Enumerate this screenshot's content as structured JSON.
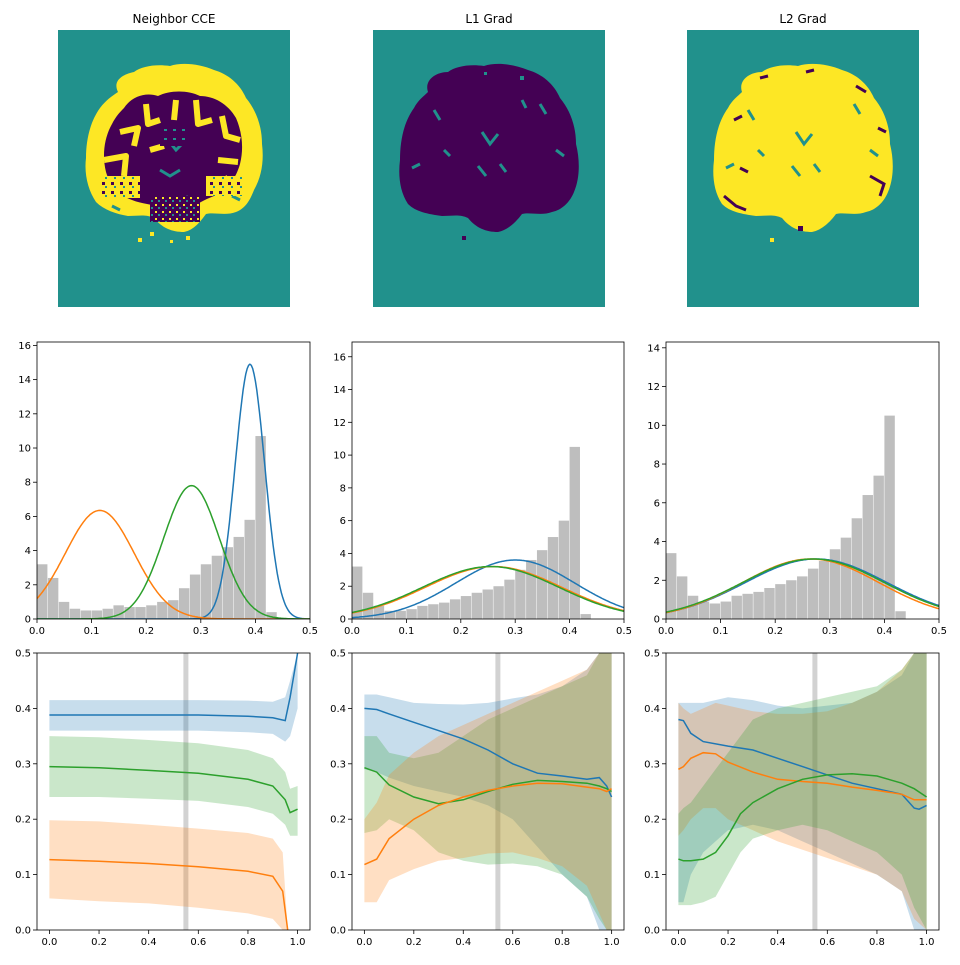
{
  "colors": {
    "blue": "#1f77b4",
    "orange": "#ff7f0e",
    "green": "#2ca02c",
    "gray": "#bebebe",
    "teal": "#21918c",
    "purple": "#440154",
    "yellow": "#fde725"
  },
  "panels": [
    {
      "title": "Neighbor CCE"
    },
    {
      "title": "L1 Grad"
    },
    {
      "title": "L2 Grad"
    }
  ],
  "chart_data": [
    {
      "type": "heatmap",
      "title": "Neighbor CCE",
      "description_values": "segmentation map with labels {0: background teal, 1: dark purple, 2: yellow}",
      "grid": false
    },
    {
      "type": "heatmap",
      "title": "L1 Grad",
      "grid": false
    },
    {
      "type": "heatmap",
      "title": "L2 Grad",
      "grid": false
    },
    {
      "type": "bar",
      "xlim": [
        0,
        0.5
      ],
      "ylim": [
        0,
        16.2
      ],
      "xticks": [
        "0.0",
        "0.1",
        "0.2",
        "0.3",
        "0.4",
        "0.5"
      ],
      "yticks": [
        "0",
        "2",
        "4",
        "6",
        "8",
        "10",
        "12",
        "14",
        "16"
      ],
      "hist": {
        "x": [
          0.0,
          0.02,
          0.04,
          0.06,
          0.08,
          0.1,
          0.12,
          0.14,
          0.16,
          0.18,
          0.2,
          0.22,
          0.24,
          0.26,
          0.28,
          0.3,
          0.32,
          0.34,
          0.36,
          0.38,
          0.4,
          0.42,
          0.44,
          0.46,
          0.48
        ],
        "values": [
          3.2,
          2.4,
          1.0,
          0.6,
          0.5,
          0.5,
          0.6,
          0.8,
          0.7,
          0.7,
          0.8,
          1.0,
          1.1,
          1.8,
          2.6,
          3.2,
          3.7,
          4.2,
          4.8,
          5.8,
          10.7,
          0.4,
          0.0,
          0.0,
          0.0
        ]
      },
      "series": [
        {
          "color": "blue",
          "mean": 0.39,
          "std": 0.027,
          "peak": 14.9
        },
        {
          "color": "orange",
          "mean": 0.115,
          "std": 0.063,
          "peak": 6.35
        },
        {
          "color": "green",
          "mean": 0.283,
          "std": 0.051,
          "peak": 7.8
        }
      ]
    },
    {
      "type": "bar",
      "xlim": [
        0,
        0.5
      ],
      "ylim": [
        0,
        16.9
      ],
      "xticks": [
        "0.0",
        "0.1",
        "0.2",
        "0.3",
        "0.4",
        "0.5"
      ],
      "yticks": [
        "0",
        "2",
        "4",
        "6",
        "8",
        "10",
        "12",
        "14",
        "16"
      ],
      "hist": {
        "x": [
          0.0,
          0.02,
          0.04,
          0.06,
          0.08,
          0.1,
          0.12,
          0.14,
          0.16,
          0.18,
          0.2,
          0.22,
          0.24,
          0.26,
          0.28,
          0.3,
          0.32,
          0.34,
          0.36,
          0.38,
          0.4,
          0.42,
          0.44,
          0.46,
          0.48
        ],
        "values": [
          3.2,
          1.6,
          0.8,
          0.5,
          0.5,
          0.6,
          0.8,
          0.9,
          1.0,
          1.2,
          1.4,
          1.6,
          1.8,
          2.0,
          2.4,
          3.0,
          3.6,
          4.2,
          5.0,
          6.0,
          10.5,
          0.3,
          0.0,
          0.0,
          0.0
        ]
      },
      "series": [
        {
          "color": "blue",
          "mean": 0.3,
          "std": 0.11,
          "peak": 3.6
        },
        {
          "color": "orange",
          "mean": 0.26,
          "std": 0.125,
          "peak": 3.2
        },
        {
          "color": "green",
          "mean": 0.255,
          "std": 0.125,
          "peak": 3.2
        }
      ]
    },
    {
      "type": "bar",
      "xlim": [
        0,
        0.5
      ],
      "ylim": [
        0,
        14.3
      ],
      "xticks": [
        "0.0",
        "0.1",
        "0.2",
        "0.3",
        "0.4",
        "0.5"
      ],
      "yticks": [
        "0",
        "2",
        "4",
        "6",
        "8",
        "10",
        "12",
        "14"
      ],
      "hist": {
        "x": [
          0.0,
          0.02,
          0.04,
          0.06,
          0.08,
          0.1,
          0.12,
          0.14,
          0.16,
          0.18,
          0.2,
          0.22,
          0.24,
          0.26,
          0.28,
          0.3,
          0.32,
          0.34,
          0.36,
          0.38,
          0.4,
          0.42,
          0.44,
          0.46,
          0.48
        ],
        "values": [
          3.4,
          2.2,
          1.2,
          0.9,
          0.8,
          0.9,
          1.2,
          1.3,
          1.4,
          1.6,
          1.8,
          2.0,
          2.2,
          2.6,
          3.0,
          3.6,
          4.2,
          5.2,
          6.4,
          7.4,
          10.5,
          0.4,
          0.0,
          0.0,
          0.0
        ]
      },
      "series": [
        {
          "color": "blue",
          "mean": 0.275,
          "std": 0.13,
          "peak": 3.1
        },
        {
          "color": "orange",
          "mean": 0.265,
          "std": 0.125,
          "peak": 3.1
        },
        {
          "color": "green",
          "mean": 0.27,
          "std": 0.13,
          "peak": 3.1
        }
      ]
    },
    {
      "type": "line",
      "xlim": [
        -0.05,
        1.05
      ],
      "ylim": [
        0,
        0.5
      ],
      "xticks": [
        "0.0",
        "0.2",
        "0.4",
        "0.6",
        "0.8",
        "1.0"
      ],
      "yticks": [
        "0.0",
        "0.1",
        "0.2",
        "0.3",
        "0.4",
        "0.5"
      ],
      "vline": 0.55,
      "series": [
        {
          "color": "blue",
          "x": [
            0,
            0.2,
            0.4,
            0.6,
            0.8,
            0.9,
            0.95,
            0.97,
            1.0
          ],
          "y": [
            0.388,
            0.388,
            0.388,
            0.388,
            0.386,
            0.383,
            0.378,
            0.42,
            0.5
          ],
          "lo": [
            0.36,
            0.36,
            0.36,
            0.36,
            0.357,
            0.354,
            0.34,
            0.35,
            0.4
          ],
          "hi": [
            0.415,
            0.415,
            0.415,
            0.415,
            0.414,
            0.412,
            0.42,
            0.45,
            0.5
          ]
        },
        {
          "color": "green",
          "x": [
            0,
            0.2,
            0.4,
            0.6,
            0.8,
            0.9,
            0.95,
            0.97,
            1.0
          ],
          "y": [
            0.295,
            0.293,
            0.288,
            0.283,
            0.272,
            0.26,
            0.235,
            0.212,
            0.218
          ],
          "lo": [
            0.24,
            0.24,
            0.237,
            0.233,
            0.222,
            0.21,
            0.19,
            0.17,
            0.17
          ],
          "hi": [
            0.35,
            0.348,
            0.343,
            0.337,
            0.325,
            0.31,
            0.285,
            0.255,
            0.26
          ]
        },
        {
          "color": "orange",
          "x": [
            0,
            0.2,
            0.4,
            0.6,
            0.8,
            0.9,
            0.94,
            0.96
          ],
          "y": [
            0.127,
            0.124,
            0.12,
            0.114,
            0.106,
            0.097,
            0.07,
            0.0
          ],
          "lo": [
            0.057,
            0.052,
            0.048,
            0.04,
            0.03,
            0.02,
            0.0,
            0.0
          ],
          "hi": [
            0.198,
            0.196,
            0.19,
            0.183,
            0.175,
            0.165,
            0.14,
            0.0
          ]
        }
      ]
    },
    {
      "type": "line",
      "xlim": [
        -0.05,
        1.05
      ],
      "ylim": [
        0,
        0.5
      ],
      "xticks": [
        "0.0",
        "0.2",
        "0.4",
        "0.6",
        "0.8",
        "1.0"
      ],
      "yticks": [
        "0.0",
        "0.1",
        "0.2",
        "0.3",
        "0.4",
        "0.5"
      ],
      "vline": 0.54,
      "series": [
        {
          "color": "blue",
          "x": [
            0,
            0.05,
            0.1,
            0.2,
            0.3,
            0.4,
            0.5,
            0.6,
            0.7,
            0.8,
            0.9,
            0.95,
            0.98,
            1.0
          ],
          "y": [
            0.4,
            0.398,
            0.39,
            0.375,
            0.36,
            0.345,
            0.325,
            0.3,
            0.283,
            0.278,
            0.272,
            0.275,
            0.26,
            0.24
          ],
          "lo": [
            0.29,
            0.285,
            0.275,
            0.26,
            0.25,
            0.24,
            0.225,
            0.2,
            0.15,
            0.1,
            0.06,
            0.0,
            0.0,
            0.0
          ],
          "hi": [
            0.425,
            0.425,
            0.42,
            0.41,
            0.408,
            0.407,
            0.41,
            0.418,
            0.425,
            0.44,
            0.47,
            0.5,
            0.5,
            0.5
          ]
        },
        {
          "color": "green",
          "x": [
            0,
            0.05,
            0.1,
            0.2,
            0.3,
            0.4,
            0.5,
            0.6,
            0.7,
            0.8,
            0.9,
            0.95,
            0.98,
            1.0
          ],
          "y": [
            0.293,
            0.285,
            0.262,
            0.24,
            0.228,
            0.235,
            0.25,
            0.263,
            0.27,
            0.268,
            0.265,
            0.26,
            0.255,
            0.25
          ],
          "lo": [
            0.175,
            0.18,
            0.2,
            0.18,
            0.14,
            0.125,
            0.118,
            0.12,
            0.115,
            0.1,
            0.06,
            0.02,
            0.0,
            0.0
          ],
          "hi": [
            0.35,
            0.35,
            0.32,
            0.31,
            0.32,
            0.35,
            0.38,
            0.4,
            0.42,
            0.44,
            0.46,
            0.5,
            0.5,
            0.5
          ]
        },
        {
          "color": "orange",
          "x": [
            0,
            0.05,
            0.1,
            0.2,
            0.3,
            0.4,
            0.5,
            0.6,
            0.7,
            0.8,
            0.9,
            0.95,
            0.98,
            1.0
          ],
          "y": [
            0.118,
            0.128,
            0.165,
            0.2,
            0.225,
            0.24,
            0.252,
            0.26,
            0.265,
            0.264,
            0.258,
            0.255,
            0.25,
            0.255
          ],
          "lo": [
            0.05,
            0.05,
            0.09,
            0.11,
            0.125,
            0.13,
            0.138,
            0.14,
            0.13,
            0.115,
            0.08,
            0.03,
            0.0,
            0.0
          ],
          "hi": [
            0.2,
            0.23,
            0.28,
            0.32,
            0.35,
            0.37,
            0.39,
            0.41,
            0.43,
            0.45,
            0.47,
            0.5,
            0.5,
            0.5
          ]
        }
      ]
    },
    {
      "type": "line",
      "xlim": [
        -0.05,
        1.05
      ],
      "ylim": [
        0,
        0.5
      ],
      "xticks": [
        "0.0",
        "0.2",
        "0.4",
        "0.6",
        "0.8",
        "1.0"
      ],
      "yticks": [
        "0.0",
        "0.1",
        "0.2",
        "0.3",
        "0.4",
        "0.5"
      ],
      "vline": 0.55,
      "series": [
        {
          "color": "blue",
          "x": [
            0,
            0.02,
            0.05,
            0.1,
            0.2,
            0.3,
            0.4,
            0.5,
            0.6,
            0.7,
            0.8,
            0.9,
            0.95,
            0.97,
            1.0
          ],
          "y": [
            0.38,
            0.378,
            0.355,
            0.34,
            0.332,
            0.325,
            0.31,
            0.295,
            0.28,
            0.265,
            0.255,
            0.245,
            0.22,
            0.218,
            0.225
          ],
          "lo": [
            0.05,
            0.05,
            0.1,
            0.14,
            0.18,
            0.19,
            0.18,
            0.16,
            0.14,
            0.12,
            0.1,
            0.07,
            0.0,
            0.0,
            0.0
          ],
          "hi": [
            0.41,
            0.41,
            0.41,
            0.41,
            0.42,
            0.415,
            0.405,
            0.4,
            0.405,
            0.41,
            0.43,
            0.46,
            0.5,
            0.5,
            0.5
          ]
        },
        {
          "color": "orange",
          "x": [
            0,
            0.02,
            0.05,
            0.1,
            0.15,
            0.2,
            0.3,
            0.4,
            0.5,
            0.6,
            0.7,
            0.8,
            0.9,
            0.95,
            1.0
          ],
          "y": [
            0.29,
            0.295,
            0.31,
            0.32,
            0.318,
            0.303,
            0.285,
            0.272,
            0.268,
            0.265,
            0.258,
            0.252,
            0.245,
            0.235,
            0.235
          ],
          "lo": [
            0.17,
            0.18,
            0.2,
            0.22,
            0.22,
            0.2,
            0.18,
            0.16,
            0.145,
            0.13,
            0.115,
            0.1,
            0.07,
            0.02,
            0.0
          ],
          "hi": [
            0.41,
            0.4,
            0.39,
            0.4,
            0.41,
            0.405,
            0.395,
            0.39,
            0.39,
            0.395,
            0.41,
            0.43,
            0.47,
            0.5,
            0.5
          ]
        },
        {
          "color": "green",
          "x": [
            0,
            0.02,
            0.05,
            0.1,
            0.15,
            0.2,
            0.25,
            0.3,
            0.4,
            0.5,
            0.6,
            0.7,
            0.8,
            0.9,
            0.95,
            1.0
          ],
          "y": [
            0.128,
            0.125,
            0.125,
            0.128,
            0.14,
            0.17,
            0.21,
            0.23,
            0.255,
            0.272,
            0.28,
            0.282,
            0.278,
            0.265,
            0.255,
            0.24
          ],
          "lo": [
            0.045,
            0.045,
            0.045,
            0.05,
            0.06,
            0.1,
            0.14,
            0.165,
            0.18,
            0.19,
            0.18,
            0.16,
            0.14,
            0.1,
            0.04,
            0.0
          ],
          "hi": [
            0.21,
            0.22,
            0.23,
            0.26,
            0.29,
            0.32,
            0.35,
            0.38,
            0.4,
            0.41,
            0.42,
            0.43,
            0.44,
            0.47,
            0.5,
            0.5
          ]
        }
      ]
    }
  ]
}
